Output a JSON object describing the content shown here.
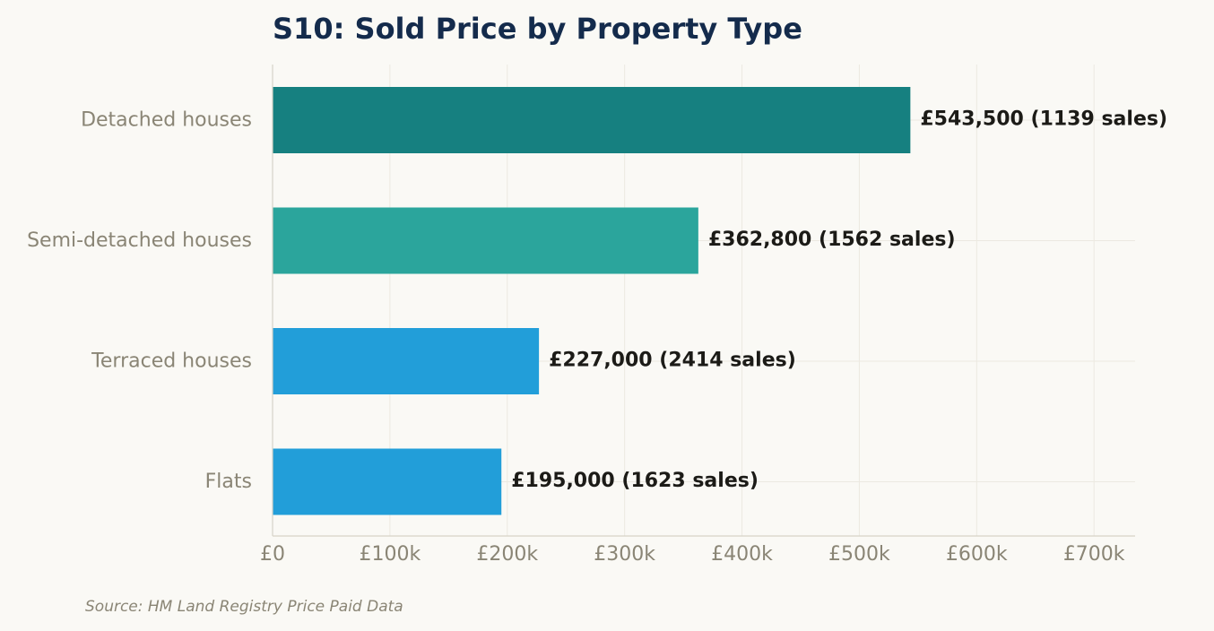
{
  "chart_data": {
    "type": "bar",
    "orientation": "horizontal",
    "title": "S10: Sold Price by Property Type",
    "xlabel": "",
    "ylabel": "",
    "categories": [
      "Detached houses",
      "Semi-detached houses",
      "Terraced houses",
      "Flats"
    ],
    "values": [
      543500,
      362800,
      227000,
      195000
    ],
    "sales": [
      1139,
      1562,
      2414,
      1623
    ],
    "data_labels": [
      "£543,500  (1139 sales)",
      "£362,800  (1562 sales)",
      "£227,000  (2414 sales)",
      "£195,000  (1623 sales)"
    ],
    "bar_colors": [
      "#168080",
      "#2ba59c",
      "#229ed9",
      "#229ed9"
    ],
    "xlim": [
      0,
      735000
    ],
    "x_ticks": [
      0,
      100000,
      200000,
      300000,
      400000,
      500000,
      600000,
      700000
    ],
    "x_tick_labels": [
      "£0",
      "£100k",
      "£200k",
      "£300k",
      "£400k",
      "£500k",
      "£600k",
      "£700k"
    ],
    "grid": true,
    "legend": "none",
    "source": "Source: HM Land Registry Price Paid Data"
  },
  "colors": {
    "background": "#faf9f5",
    "title": "#142b4c",
    "axis_text": "#8a8575",
    "value_text": "#1c1b17",
    "grid": "#ece9e1",
    "axis_line": "#d6d3c8"
  }
}
